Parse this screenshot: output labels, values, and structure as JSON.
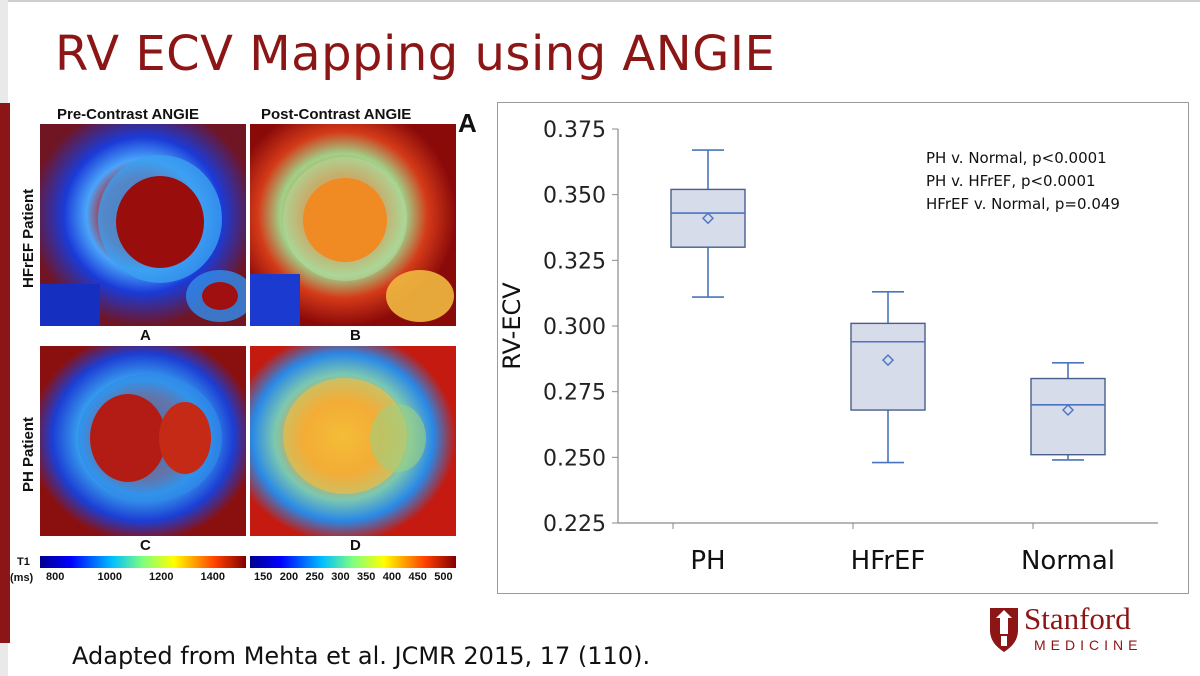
{
  "slide": {
    "title": "RV ECV Mapping using ANGIE",
    "credit": "Adapted from Mehta et al. JCMR 2015, 17 (110)."
  },
  "figure": {
    "col_headers": [
      "Pre-Contrast ANGIE",
      "Post-Contrast ANGIE"
    ],
    "row_labels": [
      "HFrEF Patient",
      "PH Patient"
    ],
    "panel_letters": [
      "A",
      "B",
      "C",
      "D"
    ],
    "figure_letter": "A",
    "colorbar_unit_top": "T1",
    "colorbar_unit_bottom": "(ms)",
    "colorbar_pre_ticks": [
      "800",
      "1000",
      "1200",
      "1400"
    ],
    "colorbar_post_ticks": [
      "150",
      "200",
      "250",
      "300",
      "350",
      "400",
      "450",
      "500"
    ]
  },
  "chart_data": {
    "type": "box",
    "title": "",
    "ylabel": "RV-ECV",
    "xlabel": "",
    "ylim": [
      0.225,
      0.375
    ],
    "yticks": [
      "0.225",
      "0.250",
      "0.275",
      "0.300",
      "0.325",
      "0.350",
      "0.375"
    ],
    "categories": [
      "PH",
      "HFrEF",
      "Normal"
    ],
    "boxes": [
      {
        "name": "PH",
        "min": 0.311,
        "q1": 0.33,
        "median": 0.343,
        "mean": 0.341,
        "q3": 0.352,
        "max": 0.367
      },
      {
        "name": "HFrEF",
        "min": 0.248,
        "q1": 0.268,
        "median": 0.294,
        "mean": 0.287,
        "q3": 0.301,
        "max": 0.313
      },
      {
        "name": "Normal",
        "min": 0.249,
        "q1": 0.251,
        "median": 0.27,
        "mean": 0.268,
        "q3": 0.28,
        "max": 0.286
      }
    ],
    "annotations": [
      "PH v. Normal, p<0.0001",
      "PH v. HFrEF, p<0.0001",
      "HFrEF v. Normal, p=0.049"
    ],
    "colors": {
      "box_fill": "#d6dcea",
      "box_stroke": "#4a5e8c",
      "whisker": "#4a74c0"
    }
  },
  "branding": {
    "name": "Stanford",
    "sub": "MEDICINE",
    "color": "#8c1515"
  }
}
